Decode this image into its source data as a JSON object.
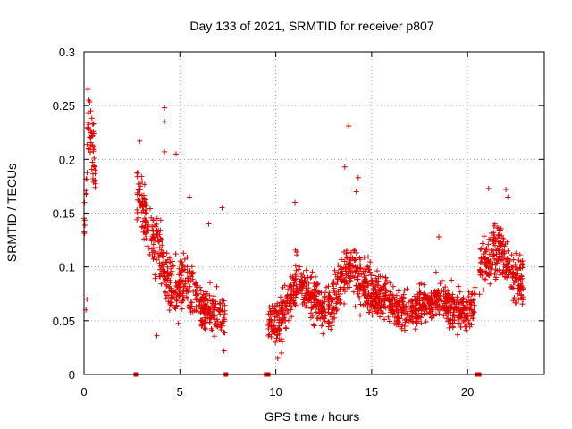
{
  "chart_data": {
    "type": "scatter",
    "title": "Day 133 of 2021, SRMTID for receiver p807",
    "xlabel": "GPS time / hours",
    "ylabel": "SRMTID / TECUs",
    "xlim": [
      0,
      24
    ],
    "ylim": [
      0,
      0.3
    ],
    "x_ticks": [
      0,
      5,
      10,
      15,
      20
    ],
    "x_tick_labels": [
      "0",
      "5",
      "10",
      "15",
      "20"
    ],
    "y_ticks": [
      0,
      0.05,
      0.1,
      0.15,
      0.2,
      0.25,
      0.3
    ],
    "y_tick_labels": [
      "0",
      "0.05",
      "0.1",
      "0.15",
      "0.2",
      "0.25",
      "0.3"
    ],
    "grid": true,
    "marker": "+",
    "color": "#e00000",
    "gap_markers_x": [
      2.7,
      7.4,
      9.5,
      9.6,
      20.5,
      20.6
    ],
    "series": [
      {
        "name": "SRMTID",
        "segments": [
          {
            "x_start": 0.0,
            "x_end": 0.6,
            "points": 60,
            "trend": [
              0.13,
              0.2,
              0.23,
              0.21,
              0.18
            ],
            "spread": 0.045
          },
          {
            "x_start": 2.75,
            "x_end": 4.2,
            "points": 150,
            "trend": [
              0.17,
              0.15,
              0.13,
              0.12,
              0.1
            ],
            "spread": 0.04
          },
          {
            "x_start": 4.2,
            "x_end": 5.8,
            "points": 170,
            "trend": [
              0.09,
              0.08,
              0.08,
              0.09,
              0.08
            ],
            "spread": 0.04
          },
          {
            "x_start": 5.8,
            "x_end": 7.35,
            "points": 160,
            "trend": [
              0.07,
              0.06,
              0.06,
              0.055,
              0.05
            ],
            "spread": 0.03
          },
          {
            "x_start": 9.6,
            "x_end": 11.0,
            "points": 150,
            "trend": [
              0.05,
              0.045,
              0.055,
              0.07,
              0.08
            ],
            "spread": 0.03
          },
          {
            "x_start": 11.0,
            "x_end": 13.0,
            "points": 210,
            "trend": [
              0.09,
              0.08,
              0.07,
              0.06,
              0.065
            ],
            "spread": 0.03
          },
          {
            "x_start": 13.0,
            "x_end": 15.0,
            "points": 220,
            "trend": [
              0.07,
              0.09,
              0.1,
              0.085,
              0.075
            ],
            "spread": 0.035
          },
          {
            "x_start": 15.0,
            "x_end": 18.0,
            "points": 320,
            "trend": [
              0.075,
              0.07,
              0.06,
              0.06,
              0.065
            ],
            "spread": 0.028
          },
          {
            "x_start": 18.0,
            "x_end": 20.4,
            "points": 250,
            "trend": [
              0.065,
              0.07,
              0.06,
              0.06,
              0.065
            ],
            "spread": 0.028
          },
          {
            "x_start": 20.6,
            "x_end": 22.9,
            "points": 240,
            "trend": [
              0.1,
              0.11,
              0.12,
              0.09,
              0.09
            ],
            "spread": 0.035
          }
        ],
        "highlights": [
          {
            "x": 0.2,
            "y": 0.265
          },
          {
            "x": 0.25,
            "y": 0.255
          },
          {
            "x": 0.35,
            "y": 0.245
          },
          {
            "x": 2.9,
            "y": 0.217
          },
          {
            "x": 4.2,
            "y": 0.248
          },
          {
            "x": 4.2,
            "y": 0.235
          },
          {
            "x": 4.2,
            "y": 0.207
          },
          {
            "x": 4.8,
            "y": 0.205
          },
          {
            "x": 5.5,
            "y": 0.165
          },
          {
            "x": 7.2,
            "y": 0.155
          },
          {
            "x": 6.5,
            "y": 0.14
          },
          {
            "x": 11.0,
            "y": 0.16
          },
          {
            "x": 13.8,
            "y": 0.231
          },
          {
            "x": 13.6,
            "y": 0.193
          },
          {
            "x": 14.3,
            "y": 0.183
          },
          {
            "x": 14.2,
            "y": 0.17
          },
          {
            "x": 18.5,
            "y": 0.128
          },
          {
            "x": 21.1,
            "y": 0.173
          },
          {
            "x": 22.0,
            "y": 0.172
          },
          {
            "x": 22.1,
            "y": 0.165
          },
          {
            "x": 10.1,
            "y": 0.015
          },
          {
            "x": 10.3,
            "y": 0.02
          },
          {
            "x": 3.8,
            "y": 0.036
          },
          {
            "x": 7.3,
            "y": 0.022
          },
          {
            "x": 0.15,
            "y": 0.07
          },
          {
            "x": 0.1,
            "y": 0.06
          }
        ]
      }
    ]
  }
}
